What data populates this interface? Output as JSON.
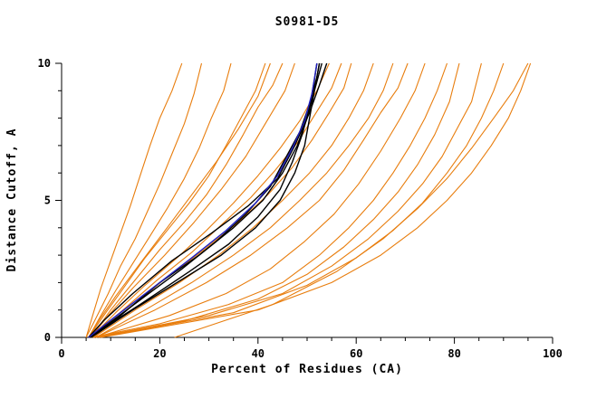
{
  "title": "S0981-D5",
  "chart_data": {
    "type": "line",
    "title": "S0981-D5",
    "xlabel": "Percent of Residues (CA)",
    "ylabel": "Distance Cutoff, A",
    "xlim": [
      0,
      100
    ],
    "ylim": [
      0,
      10
    ],
    "x_major_ticks": [
      0,
      20,
      40,
      60,
      80,
      100
    ],
    "x_minor_step": 5,
    "y_major_ticks": [
      0,
      5,
      10
    ],
    "y_minor_step": 1,
    "grid": false,
    "legend": "none",
    "colors": {
      "orange": "#e87d0d",
      "black": "#000000",
      "blue": "#2020c0"
    },
    "series": [
      {
        "color": "orange",
        "points": [
          [
            5,
            0
          ],
          [
            6.5,
            0.9
          ],
          [
            8,
            1.8
          ],
          [
            10,
            2.8
          ],
          [
            12,
            3.8
          ],
          [
            14,
            4.8
          ],
          [
            16,
            5.9
          ],
          [
            18,
            7
          ],
          [
            20,
            8
          ],
          [
            22.5,
            9
          ],
          [
            24.5,
            10
          ]
        ]
      },
      {
        "color": "orange",
        "points": [
          [
            5,
            0
          ],
          [
            7,
            0.7
          ],
          [
            9.5,
            1.6
          ],
          [
            12,
            2.6
          ],
          [
            15,
            3.6
          ],
          [
            17.5,
            4.6
          ],
          [
            20,
            5.6
          ],
          [
            22.5,
            6.7
          ],
          [
            25,
            7.8
          ],
          [
            27,
            8.9
          ],
          [
            28.5,
            10
          ]
        ]
      },
      {
        "color": "orange",
        "points": [
          [
            5.5,
            0
          ],
          [
            8,
            0.8
          ],
          [
            11,
            1.7
          ],
          [
            14.5,
            2.7
          ],
          [
            18,
            3.7
          ],
          [
            21.5,
            4.7
          ],
          [
            25,
            5.8
          ],
          [
            28,
            6.9
          ],
          [
            30.5,
            8
          ],
          [
            33,
            9
          ],
          [
            34.5,
            10
          ]
        ]
      },
      {
        "color": "orange",
        "points": [
          [
            5.5,
            0
          ],
          [
            9,
            0.9
          ],
          [
            13,
            1.9
          ],
          [
            17,
            2.9
          ],
          [
            21.5,
            3.9
          ],
          [
            26,
            4.9
          ],
          [
            30,
            5.9
          ],
          [
            33.5,
            7
          ],
          [
            36.5,
            8
          ],
          [
            39.5,
            9
          ],
          [
            41.5,
            10
          ]
        ]
      },
      {
        "color": "orange",
        "points": [
          [
            6,
            0
          ],
          [
            10,
            1
          ],
          [
            15,
            2.1
          ],
          [
            20,
            3.2
          ],
          [
            25,
            4.2
          ],
          [
            29.5,
            5.2
          ],
          [
            33.5,
            6.3
          ],
          [
            37,
            7.4
          ],
          [
            40,
            8.4
          ],
          [
            43,
            9.2
          ],
          [
            45,
            10
          ]
        ]
      },
      {
        "color": "orange",
        "points": [
          [
            6,
            0
          ],
          [
            11,
            0.9
          ],
          [
            17,
            1.9
          ],
          [
            23.5,
            2.9
          ],
          [
            29.5,
            3.9
          ],
          [
            35,
            4.9
          ],
          [
            40,
            5.9
          ],
          [
            44.5,
            6.9
          ],
          [
            48.5,
            7.9
          ],
          [
            52,
            9
          ],
          [
            54.5,
            10
          ]
        ]
      },
      {
        "color": "orange",
        "points": [
          [
            6,
            0
          ],
          [
            12.5,
            1
          ],
          [
            19.5,
            2.1
          ],
          [
            26.5,
            3.1
          ],
          [
            32.5,
            4.1
          ],
          [
            38.5,
            5.1
          ],
          [
            43.5,
            6.1
          ],
          [
            48,
            7.1
          ],
          [
            51.5,
            8.1
          ],
          [
            55,
            9.1
          ],
          [
            57,
            10
          ]
        ]
      },
      {
        "color": "orange",
        "points": [
          [
            6.5,
            0
          ],
          [
            14,
            1.1
          ],
          [
            21.5,
            2.2
          ],
          [
            29,
            3.2
          ],
          [
            36,
            4.2
          ],
          [
            42,
            5.2
          ],
          [
            47,
            6.2
          ],
          [
            51,
            7.2
          ],
          [
            54.5,
            8.2
          ],
          [
            57.5,
            9.1
          ],
          [
            59,
            10
          ]
        ]
      },
      {
        "color": "orange",
        "points": [
          [
            6.5,
            0
          ],
          [
            15,
            1
          ],
          [
            24,
            2
          ],
          [
            32,
            3
          ],
          [
            39,
            4
          ],
          [
            45,
            5
          ],
          [
            50.5,
            6
          ],
          [
            55,
            7
          ],
          [
            58.5,
            8
          ],
          [
            61.5,
            9
          ],
          [
            63.5,
            10
          ]
        ]
      },
      {
        "color": "orange",
        "points": [
          [
            7,
            0
          ],
          [
            17,
            1
          ],
          [
            26.5,
            2
          ],
          [
            35,
            3
          ],
          [
            42.5,
            4
          ],
          [
            48.5,
            5
          ],
          [
            54,
            6
          ],
          [
            58.5,
            7
          ],
          [
            62.5,
            8
          ],
          [
            65.5,
            9
          ],
          [
            67.5,
            10
          ]
        ]
      },
      {
        "color": "orange",
        "points": [
          [
            7,
            0
          ],
          [
            19,
            1
          ],
          [
            29.5,
            2
          ],
          [
            38.5,
            3
          ],
          [
            46,
            4
          ],
          [
            52.5,
            5
          ],
          [
            57.5,
            6.1
          ],
          [
            61.5,
            7.2
          ],
          [
            65,
            8.2
          ],
          [
            68.5,
            9.1
          ],
          [
            70.5,
            10
          ]
        ]
      },
      {
        "color": "orange",
        "points": [
          [
            7,
            0
          ],
          [
            22,
            0.8
          ],
          [
            33.5,
            1.6
          ],
          [
            42.5,
            2.5
          ],
          [
            49.5,
            3.5
          ],
          [
            55.5,
            4.5
          ],
          [
            60.5,
            5.6
          ],
          [
            65,
            6.8
          ],
          [
            69,
            8
          ],
          [
            72,
            9
          ],
          [
            74,
            10
          ]
        ]
      },
      {
        "color": "orange",
        "points": [
          [
            6,
            0
          ],
          [
            20,
            0.5
          ],
          [
            34,
            1.2
          ],
          [
            45,
            2
          ],
          [
            52.5,
            3
          ],
          [
            58.5,
            4
          ],
          [
            63.5,
            5
          ],
          [
            67.5,
            6
          ],
          [
            71,
            7
          ],
          [
            74,
            8
          ],
          [
            76.5,
            9
          ],
          [
            78.5,
            10
          ]
        ]
      },
      {
        "color": "orange",
        "points": [
          [
            6.5,
            0
          ],
          [
            25,
            0.6
          ],
          [
            40,
            1.4
          ],
          [
            50,
            2.3
          ],
          [
            57.5,
            3.3
          ],
          [
            63.5,
            4.3
          ],
          [
            68.5,
            5.3
          ],
          [
            72.5,
            6.3
          ],
          [
            76,
            7.4
          ],
          [
            79,
            8.6
          ],
          [
            81,
            10
          ]
        ]
      },
      {
        "color": "orange",
        "points": [
          [
            7,
            0
          ],
          [
            30,
            0.8
          ],
          [
            45,
            1.6
          ],
          [
            55,
            2.6
          ],
          [
            62.5,
            3.6
          ],
          [
            68.5,
            4.6
          ],
          [
            73.5,
            5.6
          ],
          [
            77.5,
            6.6
          ],
          [
            80.5,
            7.6
          ],
          [
            83.5,
            8.6
          ],
          [
            85.5,
            10
          ]
        ]
      },
      {
        "color": "orange",
        "points": [
          [
            7.5,
            0
          ],
          [
            35,
            0.9
          ],
          [
            50,
            1.9
          ],
          [
            60,
            2.9
          ],
          [
            67.5,
            3.9
          ],
          [
            73.5,
            4.9
          ],
          [
            78.5,
            6
          ],
          [
            82.5,
            7
          ],
          [
            85.5,
            8
          ],
          [
            88,
            9
          ],
          [
            90,
            10
          ]
        ]
      },
      {
        "color": "orange",
        "points": [
          [
            8,
            0
          ],
          [
            40,
            1
          ],
          [
            55,
            2
          ],
          [
            65,
            3
          ],
          [
            72.5,
            4
          ],
          [
            78.5,
            5
          ],
          [
            83.5,
            6
          ],
          [
            87.5,
            7
          ],
          [
            91,
            8
          ],
          [
            93.5,
            9
          ],
          [
            95.5,
            10
          ]
        ]
      },
      {
        "color": "orange",
        "points": [
          [
            23,
            0
          ],
          [
            43,
            1.2
          ],
          [
            56,
            2.4
          ],
          [
            65.5,
            3.6
          ],
          [
            72.5,
            4.7
          ],
          [
            78.5,
            5.8
          ],
          [
            83.5,
            6.9
          ],
          [
            88,
            8
          ],
          [
            92,
            9
          ],
          [
            95,
            10
          ]
        ]
      },
      {
        "color": "orange",
        "points": [
          [
            5.5,
            0
          ],
          [
            7.5,
            0.6
          ],
          [
            11,
            1.5
          ],
          [
            16,
            2.7
          ],
          [
            21.5,
            4
          ],
          [
            26.5,
            5.2
          ],
          [
            31.5,
            6.4
          ],
          [
            36,
            7.6
          ],
          [
            40,
            8.8
          ],
          [
            42.5,
            10
          ]
        ]
      },
      {
        "color": "orange",
        "points": [
          [
            6,
            0
          ],
          [
            9.5,
            0.8
          ],
          [
            14.5,
            1.8
          ],
          [
            21,
            3
          ],
          [
            27,
            4.2
          ],
          [
            32.5,
            5.4
          ],
          [
            37.5,
            6.6
          ],
          [
            41.5,
            7.8
          ],
          [
            45.5,
            9
          ],
          [
            47.5,
            10
          ]
        ]
      },
      {
        "color": "black",
        "points": [
          [
            5.5,
            0
          ],
          [
            9.5,
            0.5
          ],
          [
            17,
            1.5
          ],
          [
            24.5,
            2.5
          ],
          [
            31.5,
            3.5
          ],
          [
            37.5,
            4.5
          ],
          [
            42.5,
            5.5
          ],
          [
            45.5,
            6.5
          ],
          [
            48.5,
            7.5
          ],
          [
            50.5,
            8.5
          ],
          [
            52,
            9.5
          ],
          [
            52.5,
            10
          ]
        ]
      },
      {
        "color": "black",
        "points": [
          [
            6,
            0
          ],
          [
            12,
            0.8
          ],
          [
            20,
            2
          ],
          [
            28,
            3
          ],
          [
            35,
            4
          ],
          [
            41,
            5
          ],
          [
            45,
            6
          ],
          [
            48,
            7
          ],
          [
            50,
            8
          ],
          [
            51.5,
            9
          ],
          [
            53,
            10
          ]
        ]
      },
      {
        "color": "black",
        "points": [
          [
            5.5,
            0
          ],
          [
            8.5,
            0.6
          ],
          [
            14.5,
            1.6
          ],
          [
            22.5,
            2.8
          ],
          [
            30.5,
            3.8
          ],
          [
            38,
            4.8
          ],
          [
            44,
            5.8
          ],
          [
            47.5,
            7
          ],
          [
            50.5,
            8.2
          ],
          [
            52.5,
            9.2
          ],
          [
            54,
            10
          ]
        ]
      },
      {
        "color": "black",
        "points": [
          [
            6,
            0
          ],
          [
            14.5,
            1
          ],
          [
            23.5,
            2
          ],
          [
            32.5,
            3
          ],
          [
            39.5,
            4
          ],
          [
            44.5,
            5
          ],
          [
            47.5,
            6
          ],
          [
            49.5,
            7
          ],
          [
            50.5,
            8
          ],
          [
            51.5,
            9
          ],
          [
            52.5,
            10
          ]
        ]
      },
      {
        "color": "black",
        "points": [
          [
            5.5,
            0
          ],
          [
            9,
            0.4
          ],
          [
            16,
            1.2
          ],
          [
            26,
            2.4
          ],
          [
            34,
            3.4
          ],
          [
            40,
            4.4
          ],
          [
            44.5,
            5.4
          ],
          [
            47,
            6.4
          ],
          [
            49,
            7.4
          ],
          [
            50.5,
            8.4
          ],
          [
            51.5,
            9.4
          ],
          [
            52,
            10
          ]
        ]
      },
      {
        "color": "blue",
        "points": [
          [
            5.5,
            0
          ],
          [
            10.5,
            0.7
          ],
          [
            18.5,
            1.8
          ],
          [
            26.5,
            2.9
          ],
          [
            33.5,
            3.9
          ],
          [
            39.5,
            4.9
          ],
          [
            44,
            5.9
          ],
          [
            47,
            6.9
          ],
          [
            49.5,
            7.9
          ],
          [
            51,
            8.9
          ],
          [
            52,
            10
          ]
        ]
      }
    ]
  }
}
